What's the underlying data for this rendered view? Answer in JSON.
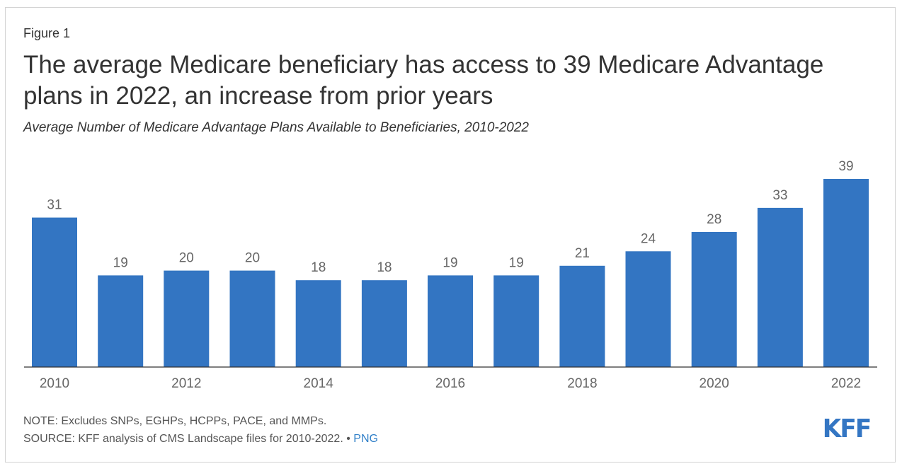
{
  "figure_label": "Figure 1",
  "title": "The average Medicare beneficiary has access to 39 Medicare Advantage plans in 2022, an increase from prior years",
  "subtitle": "Average Number of Medicare Advantage Plans Available to Beneficiaries, 2010-2022",
  "note": "NOTE: Excludes SNPs, EGHPs, HCPPs, PACE, and MMPs.",
  "source": "SOURCE: KFF analysis of CMS Landscape files for 2010-2022.",
  "source_separator": " • ",
  "png_link": "PNG",
  "logo": "KFF",
  "colors": {
    "bar": "#3375c2",
    "axis": "#333333",
    "label": "#666666",
    "link": "#2f7fc8",
    "logo": "#3476c3"
  },
  "chart_data": {
    "type": "bar",
    "title": "Average Number of Medicare Advantage Plans Available to Beneficiaries, 2010-2022",
    "xlabel": "",
    "ylabel": "",
    "categories": [
      "2010",
      "2011",
      "2012",
      "2013",
      "2014",
      "2015",
      "2016",
      "2017",
      "2018",
      "2019",
      "2020",
      "2021",
      "2022"
    ],
    "values": [
      31,
      19,
      20,
      20,
      18,
      18,
      19,
      19,
      21,
      24,
      28,
      33,
      39
    ],
    "tick_labels": [
      "2010",
      "",
      "2012",
      "",
      "2014",
      "",
      "2016",
      "",
      "2018",
      "",
      "2020",
      "",
      "2022"
    ],
    "ylim": [
      0,
      39
    ],
    "grid": false,
    "legend": "none",
    "data_labels": true
  }
}
